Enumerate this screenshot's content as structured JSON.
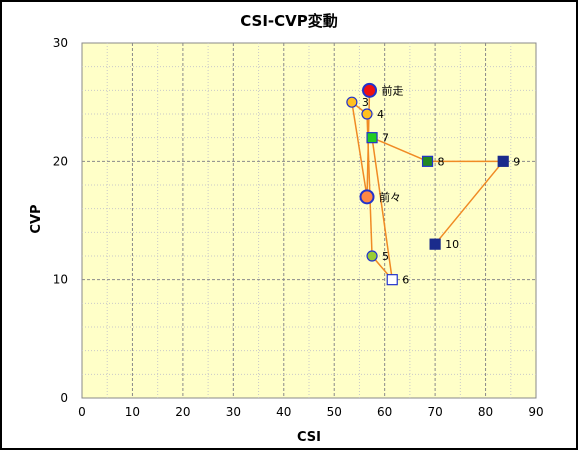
{
  "chart_data": {
    "type": "scatter",
    "title": "CSI-CVP変動",
    "xlabel": "CSI",
    "ylabel": "CVP",
    "xlim": [
      0,
      90
    ],
    "ylim": [
      0,
      30
    ],
    "xticks": [
      "0",
      "10",
      "20",
      "30",
      "40",
      "50",
      "60",
      "70",
      "80",
      "90"
    ],
    "yticks": [
      "0",
      "10",
      "20",
      "30"
    ],
    "grid": true,
    "line_color": "#f08a24",
    "plot_background": "#ffffc8",
    "points": [
      {
        "label": "前走",
        "x": 57,
        "y": 26,
        "shape": "circle-large",
        "fill": "#ee1111",
        "stroke": "#2233cc"
      },
      {
        "label": "3",
        "x": 53.5,
        "y": 25,
        "shape": "circle",
        "fill": "#ffc020",
        "stroke": "#2233cc"
      },
      {
        "label": "4",
        "x": 56.5,
        "y": 24,
        "shape": "circle",
        "fill": "#ffc020",
        "stroke": "#2233cc"
      },
      {
        "label": "7",
        "x": 57.5,
        "y": 22,
        "shape": "square",
        "fill": "#22cc22",
        "stroke": "#2233cc"
      },
      {
        "label": "8",
        "x": 68.5,
        "y": 20,
        "shape": "square",
        "fill": "#228822",
        "stroke": "#2233cc"
      },
      {
        "label": "9",
        "x": 83.5,
        "y": 20,
        "shape": "square",
        "fill": "#1a2b8c",
        "stroke": "#1a2b8c"
      },
      {
        "label": "前々",
        "x": 56.5,
        "y": 17,
        "shape": "circle-large",
        "fill": "#ff8844",
        "stroke": "#2233cc"
      },
      {
        "label": "10",
        "x": 70,
        "y": 13,
        "shape": "square",
        "fill": "#1a2b8c",
        "stroke": "#1a2b8c"
      },
      {
        "label": "5",
        "x": 57.5,
        "y": 12,
        "shape": "circle",
        "fill": "#99cc33",
        "stroke": "#2233cc"
      },
      {
        "label": "6",
        "x": 61.5,
        "y": 10,
        "shape": "square",
        "fill": "#ffffff",
        "stroke": "#2233cc"
      }
    ],
    "path_order": [
      "10",
      "9",
      "8",
      "7",
      "6",
      "5",
      "4",
      "3",
      "前々",
      "前走"
    ]
  }
}
